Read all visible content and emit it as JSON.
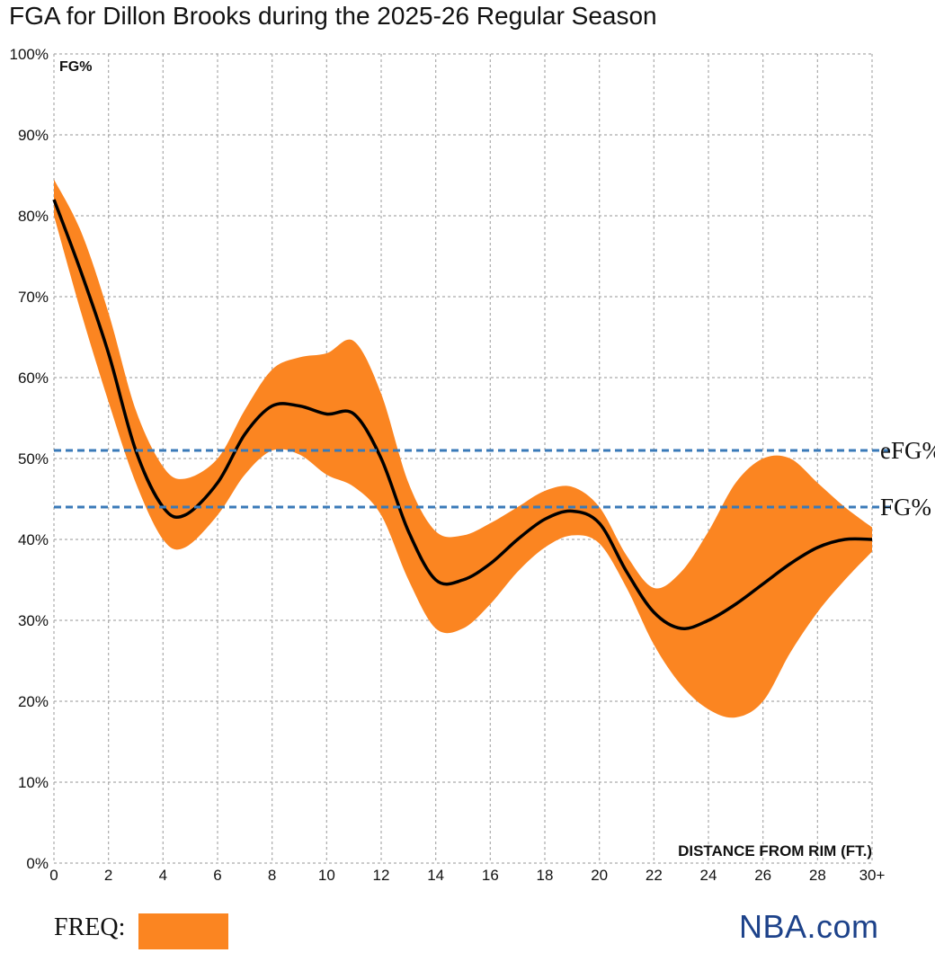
{
  "title": "FGA for Dillon Brooks during the 2025-26 Regular Season",
  "brand": "NBA.com",
  "legend": {
    "freq_label": "FREQ:"
  },
  "colors": {
    "band": "#fb8521",
    "line": "#000000",
    "reference": "#3a7ab8",
    "grid": "#aaaaaa",
    "brand": "#1d428a"
  },
  "chart_data": {
    "type": "area",
    "ylabel": "FG%",
    "xlabel": "DISTANCE FROM RIM (FT.)",
    "xlim": [
      0,
      30
    ],
    "ylim": [
      0,
      100
    ],
    "x_ticks": [
      "0",
      "2",
      "4",
      "6",
      "8",
      "10",
      "12",
      "14",
      "16",
      "18",
      "20",
      "22",
      "24",
      "26",
      "28",
      "30+"
    ],
    "y_ticks": [
      "0%",
      "10%",
      "20%",
      "30%",
      "40%",
      "50%",
      "60%",
      "70%",
      "80%",
      "90%",
      "100%"
    ],
    "grid": true,
    "series": [
      {
        "role": "fg_pct",
        "x": [
          0,
          1,
          2,
          3,
          4,
          4.8,
          6,
          7,
          8,
          9,
          10,
          11,
          12,
          13,
          14,
          15,
          16,
          17,
          18,
          19,
          20,
          21,
          22,
          23,
          24,
          25,
          26,
          27,
          28,
          29,
          30
        ],
        "y": [
          82,
          73,
          63,
          51,
          44,
          43,
          47,
          53,
          56.5,
          56.5,
          55.5,
          55.5,
          50,
          41,
          35,
          35,
          37,
          40,
          42.5,
          43.5,
          42,
          36,
          31,
          29,
          30,
          32,
          34.5,
          37,
          39,
          40,
          40
        ]
      },
      {
        "role": "freq_upper",
        "x": [
          0,
          1,
          2,
          3,
          4,
          4.8,
          6,
          7,
          8,
          9,
          10,
          11,
          12,
          13,
          14,
          15,
          16,
          17,
          18,
          19,
          20,
          21,
          22,
          23,
          24,
          25,
          26,
          27,
          28,
          29,
          30
        ],
        "y": [
          84.5,
          78,
          68,
          56,
          49,
          47.5,
          50,
          56,
          61,
          62.5,
          63,
          64.5,
          58,
          47,
          41,
          40.5,
          42,
          44,
          46,
          46.5,
          44,
          38,
          34,
          36,
          41,
          47,
          50,
          50,
          47,
          44,
          41.5
        ]
      },
      {
        "role": "freq_lower",
        "x": [
          0,
          1,
          2,
          3,
          4,
          4.8,
          6,
          7,
          8,
          9,
          10,
          11,
          12,
          13,
          14,
          15,
          16,
          17,
          18,
          19,
          20,
          21,
          22,
          23,
          24,
          25,
          26,
          27,
          28,
          29,
          30
        ],
        "y": [
          80,
          68,
          57,
          47,
          40,
          39,
          43,
          48,
          51,
          50.5,
          48,
          46.5,
          43,
          35,
          29,
          29,
          32,
          36,
          39,
          40.5,
          39.5,
          34,
          27,
          22,
          19,
          18,
          20,
          26,
          31,
          35,
          38.5
        ]
      }
    ],
    "reference_lines": [
      {
        "label": "eFG%",
        "y": 51
      },
      {
        "label": "FG%",
        "y": 44
      }
    ]
  }
}
